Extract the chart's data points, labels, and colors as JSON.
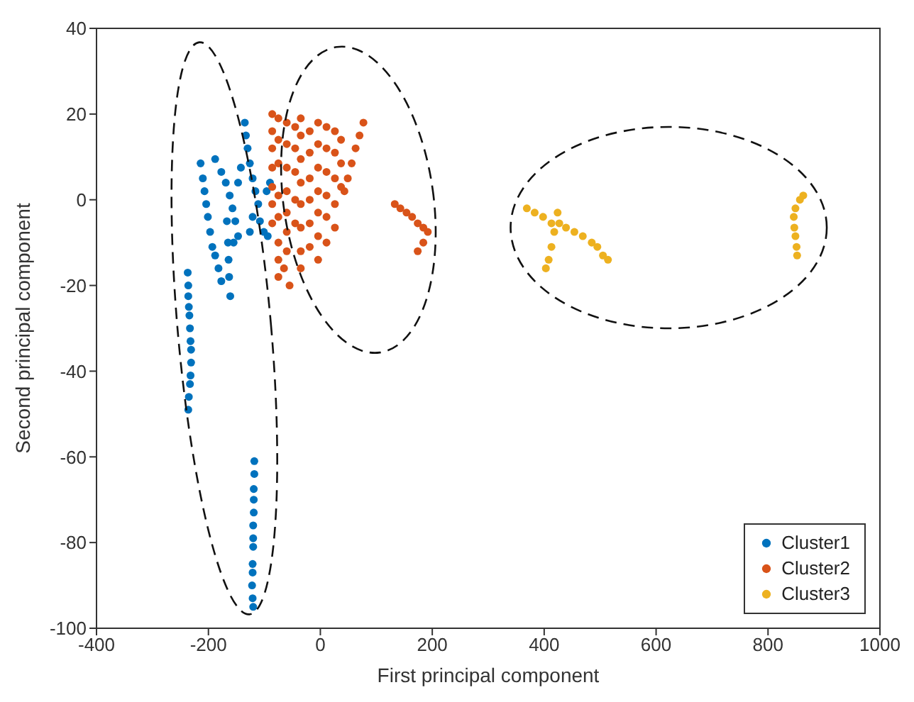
{
  "chart_data": {
    "type": "scatter",
    "xlabel": "First principal component",
    "ylabel": "Second principal component",
    "xlim": [
      -400,
      1000
    ],
    "ylim": [
      -100,
      40
    ],
    "xticks": [
      -400,
      -200,
      0,
      200,
      400,
      600,
      800,
      1000
    ],
    "yticks": [
      -100,
      -80,
      -60,
      -40,
      -20,
      0,
      20,
      40
    ],
    "grid": false,
    "legend": "bottom right",
    "marker": "circle",
    "series": [
      {
        "name": "Cluster1",
        "color": "#0072bd",
        "x": [
          -118,
          -118,
          -119,
          -119,
          -119,
          -120,
          -120,
          -120,
          -121,
          -121,
          -122,
          -121,
          -120,
          -237,
          -236,
          -236,
          -235,
          -234,
          -233,
          -232,
          -231,
          -231,
          -232,
          -233,
          -235,
          -236,
          -214,
          -210,
          -207,
          -204,
          -201,
          -197,
          -193,
          -188,
          -182,
          -177,
          -167,
          -165,
          -164,
          -163,
          -161,
          -188,
          -177,
          -169,
          -162,
          -157,
          -152,
          -147,
          -155,
          -135,
          -133,
          -130,
          -126,
          -121,
          -116,
          -111,
          -108,
          -101,
          -94,
          -142,
          -147,
          -90,
          -96,
          -121,
          -126
        ],
        "values": [
          -61,
          -64,
          -67.5,
          -70,
          -73,
          -76,
          -79,
          -81,
          -85,
          -87,
          -90,
          -93,
          -95,
          -17,
          -20,
          -22.5,
          -25,
          -27,
          -30,
          -33,
          -35,
          -38,
          -41,
          -43,
          -46,
          -49,
          8.5,
          5,
          2,
          -1,
          -4,
          -7.5,
          -11,
          -13,
          -16,
          -19,
          -5,
          -10,
          -14,
          -18,
          -22.5,
          9.5,
          6.5,
          4,
          1,
          -2,
          -5,
          -8.5,
          -10,
          18,
          15,
          12,
          8.5,
          5,
          2,
          -1,
          -5,
          -7.5,
          -8.5,
          7.5,
          4,
          4,
          2,
          -4,
          -7.5
        ]
      },
      {
        "name": "Cluster2",
        "color": "#d95319",
        "x": [
          -86,
          -86,
          -86,
          -86,
          -86,
          -86,
          -86,
          -75,
          -75,
          -75,
          -75,
          -75,
          -75,
          -75,
          -75,
          -60,
          -60,
          -60,
          -60,
          -60,
          -60,
          -60,
          -45,
          -45,
          -45,
          -45,
          -45,
          -35,
          -35,
          -35,
          -35,
          -35,
          -35,
          -35,
          -35,
          -19,
          -19,
          -19,
          -19,
          -19,
          -19,
          -4,
          -4,
          -4,
          -4,
          -4,
          -4,
          -4,
          11,
          11,
          11,
          11,
          11,
          11,
          26,
          26,
          26,
          26,
          26,
          37,
          37,
          37,
          -65,
          -55,
          77,
          70,
          63,
          56,
          49,
          43,
          133,
          143,
          154,
          164,
          174,
          184,
          192,
          184,
          174
        ],
        "values": [
          20,
          16,
          12,
          7.5,
          3,
          -1,
          -5.5,
          19,
          14,
          8.5,
          1,
          -4,
          -10,
          -14,
          -18,
          18,
          13,
          7.5,
          2,
          -3,
          -7.5,
          -12,
          17,
          12,
          6.5,
          0,
          -5.5,
          19,
          15,
          9.5,
          4,
          -1,
          -6.5,
          -12,
          -16,
          16,
          11,
          5,
          0,
          -5.5,
          -11,
          18,
          13,
          7.5,
          2,
          -3,
          -8.5,
          -14,
          17,
          12,
          6.5,
          1,
          -4,
          -10,
          16,
          11,
          5,
          -1,
          -6.5,
          14,
          8.5,
          3,
          -16,
          -20,
          18,
          15,
          12,
          8.5,
          5,
          2,
          -1,
          -2,
          -3,
          -4,
          -5.5,
          -6.5,
          -7.5,
          -10,
          -12
        ]
      },
      {
        "name": "Cluster3",
        "color": "#edb120",
        "x": [
          369,
          383,
          398,
          413,
          427,
          439,
          454,
          469,
          485,
          495,
          505,
          514,
          424,
          418,
          413,
          408,
          403,
          863,
          857,
          849,
          846,
          847,
          849,
          851,
          852
        ],
        "values": [
          -2,
          -3,
          -4,
          -5.5,
          -5.5,
          -6.5,
          -7.5,
          -8.5,
          -10,
          -11,
          -13,
          -14,
          -3,
          -7.5,
          -11,
          -14,
          -16,
          1,
          0,
          -2,
          -4,
          -6.5,
          -8.5,
          -11,
          -13
        ]
      }
    ]
  }
}
